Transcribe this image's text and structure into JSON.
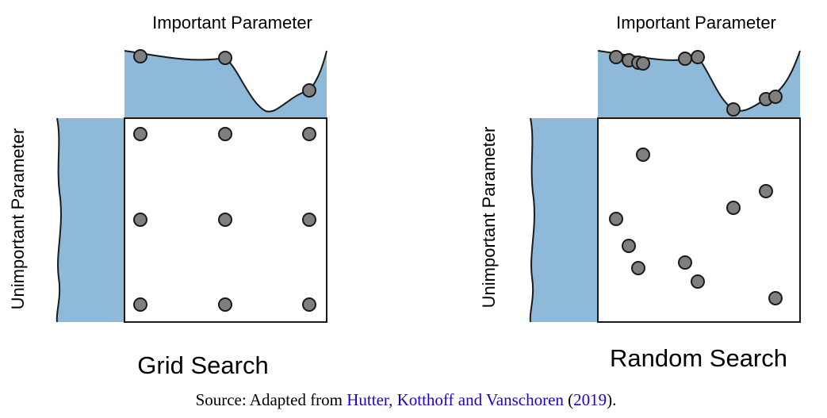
{
  "panels": [
    {
      "id": "grid",
      "title": "Grid Search",
      "top_label": "Important Parameter",
      "side_label": "Unimportant Parameter",
      "colors": {
        "fill": "#8fb9d9",
        "point": "#7f7f7f",
        "stroke": "#1a1a1a"
      }
    },
    {
      "id": "random",
      "title": "Random Search",
      "top_label": "Important Parameter",
      "side_label": "Unimportant Parameter",
      "colors": {
        "fill": "#8fb9d9",
        "point": "#7f7f7f",
        "stroke": "#1a1a1a"
      }
    }
  ],
  "caption": {
    "prefix": "Source: Adapted from ",
    "authors": "Hutter, Kotthoff and Vanschoren",
    "open_paren": " (",
    "year": "2019",
    "close_paren": ")."
  }
}
